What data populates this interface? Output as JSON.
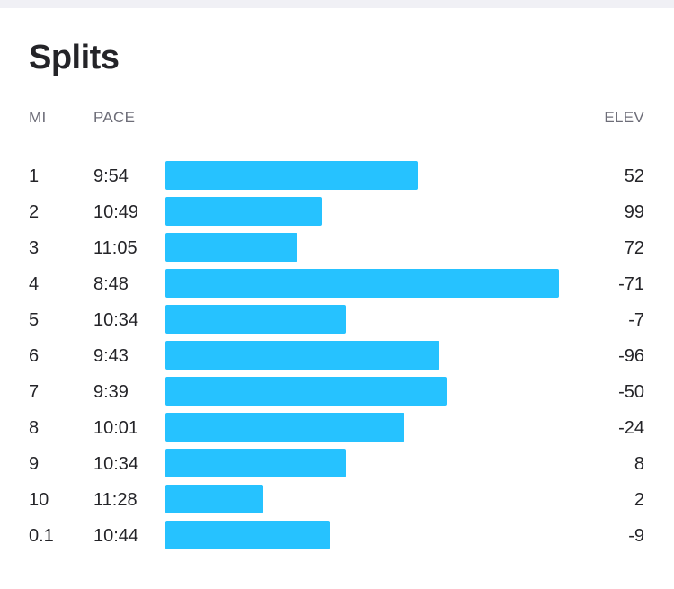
{
  "title": "Splits",
  "columns": {
    "mi": "MI",
    "pace": "PACE",
    "elev": "ELEV"
  },
  "colors": {
    "bar": "#26c2ff",
    "text": "#242428",
    "muted": "#6d6d78"
  },
  "splits": [
    {
      "mi": "1",
      "pace": "9:54",
      "elev": "52",
      "pace_seconds": 594
    },
    {
      "mi": "2",
      "pace": "10:49",
      "elev": "99",
      "pace_seconds": 649
    },
    {
      "mi": "3",
      "pace": "11:05",
      "elev": "72",
      "pace_seconds": 665
    },
    {
      "mi": "4",
      "pace": "8:48",
      "elev": "-71",
      "pace_seconds": 528
    },
    {
      "mi": "5",
      "pace": "10:34",
      "elev": "-7",
      "pace_seconds": 634
    },
    {
      "mi": "6",
      "pace": "9:43",
      "elev": "-96",
      "pace_seconds": 583
    },
    {
      "mi": "7",
      "pace": "9:39",
      "elev": "-50",
      "pace_seconds": 579
    },
    {
      "mi": "8",
      "pace": "10:01",
      "elev": "-24",
      "pace_seconds": 601
    },
    {
      "mi": "9",
      "pace": "10:34",
      "elev": "8",
      "pace_seconds": 634
    },
    {
      "mi": "10",
      "pace": "11:28",
      "elev": "2",
      "pace_seconds": 688
    },
    {
      "mi": "0.1",
      "pace": "10:44",
      "elev": "-9",
      "pace_seconds": 644
    }
  ]
}
